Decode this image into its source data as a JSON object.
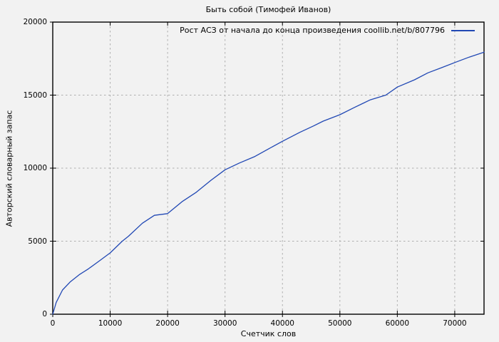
{
  "chart_data": {
    "type": "line",
    "title": "Быть собой (Тимофей Иванов)",
    "xlabel": "Счетчик слов",
    "ylabel": "Авторский словарный запас",
    "xlim": [
      0,
      75100
    ],
    "ylim": [
      0,
      20000
    ],
    "xticks": [
      0,
      10000,
      20000,
      30000,
      40000,
      50000,
      60000,
      70000
    ],
    "yticks": [
      0,
      5000,
      10000,
      15000,
      20000
    ],
    "grid": true,
    "grid_style": "dashed",
    "legend_position": "top-right",
    "background": "#f2f2f2",
    "grid_color": "#aeaeae",
    "border_color": "#000000",
    "text_color": "#000000",
    "series": [
      {
        "name": "Рост АСЗ от начала до конца произведения coollib.net/b/807796",
        "color": "#2148b4",
        "points": [
          [
            0,
            0
          ],
          [
            600,
            800
          ],
          [
            1700,
            1660
          ],
          [
            3000,
            2200
          ],
          [
            4600,
            2700
          ],
          [
            6200,
            3100
          ],
          [
            8200,
            3680
          ],
          [
            10000,
            4200
          ],
          [
            12100,
            5000
          ],
          [
            13200,
            5340
          ],
          [
            15600,
            6230
          ],
          [
            17700,
            6770
          ],
          [
            20000,
            6890
          ],
          [
            22500,
            7700
          ],
          [
            25000,
            8350
          ],
          [
            27500,
            9150
          ],
          [
            30000,
            9890
          ],
          [
            32500,
            10350
          ],
          [
            35200,
            10800
          ],
          [
            37500,
            11300
          ],
          [
            40000,
            11840
          ],
          [
            43000,
            12450
          ],
          [
            45400,
            12890
          ],
          [
            47100,
            13220
          ],
          [
            50000,
            13660
          ],
          [
            52500,
            14150
          ],
          [
            55300,
            14680
          ],
          [
            58000,
            15000
          ],
          [
            60000,
            15550
          ],
          [
            63000,
            16050
          ],
          [
            65300,
            16520
          ],
          [
            67700,
            16880
          ],
          [
            70000,
            17230
          ],
          [
            72500,
            17600
          ],
          [
            75100,
            17940
          ]
        ]
      }
    ]
  }
}
